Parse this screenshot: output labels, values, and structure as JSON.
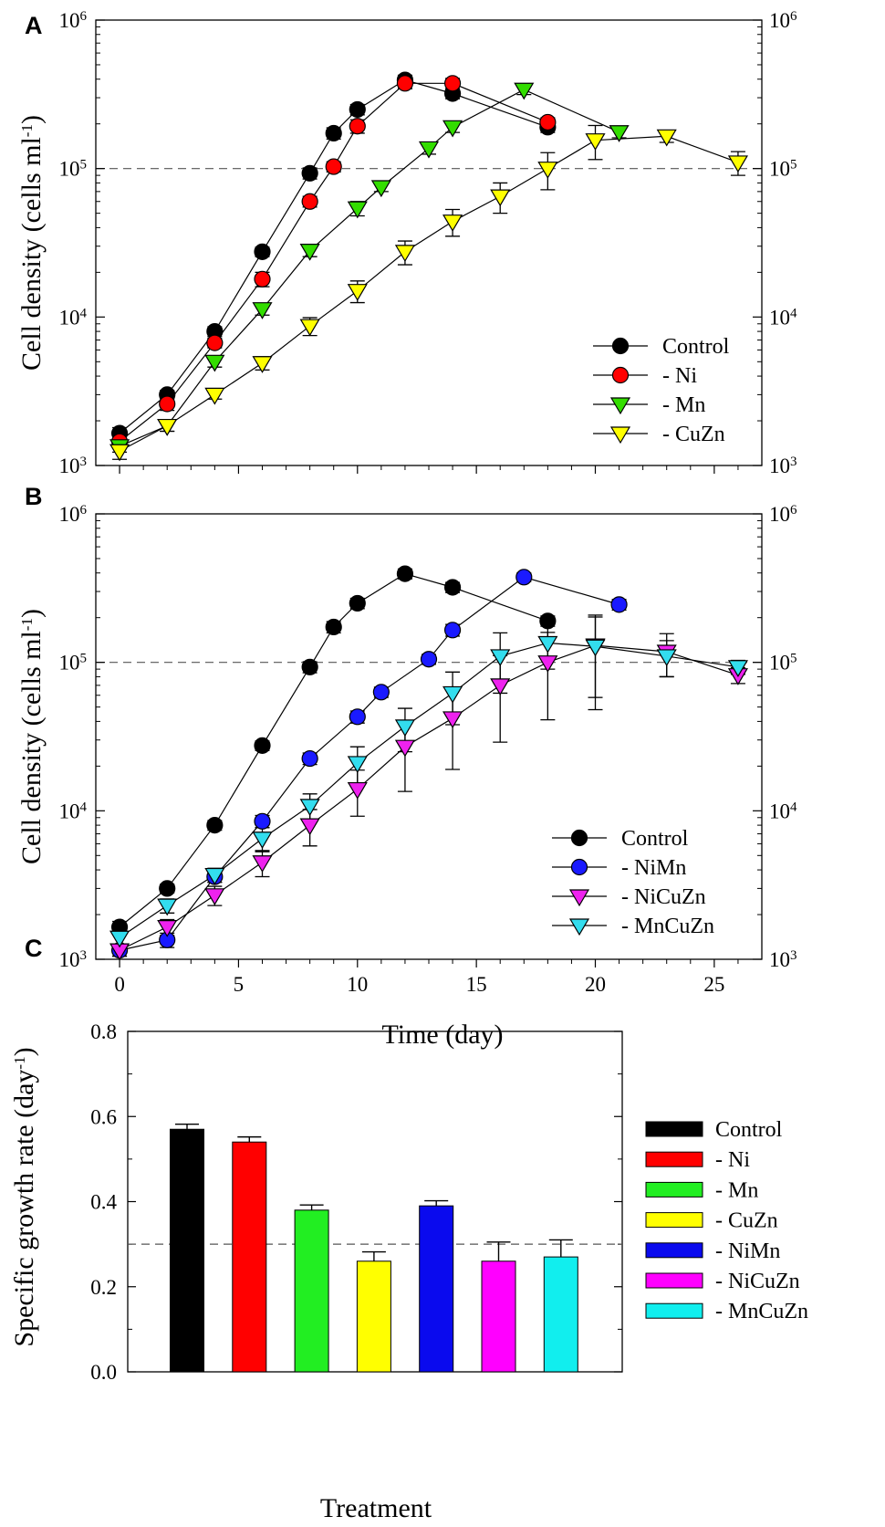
{
  "figure": {
    "panel_letters": [
      "A",
      "B",
      "C"
    ]
  },
  "chart_data": [
    {
      "panel": "A",
      "type": "line",
      "yscale": "log",
      "xlim": [
        -1,
        27
      ],
      "ylim": [
        1000,
        1000000
      ],
      "ylabel": "Cell density (cells ml",
      "ylabel_sup": "-1",
      "ylabel_close": ")",
      "yticks": [
        {
          "base": "10",
          "exp": "3",
          "value": 1000
        },
        {
          "base": "10",
          "exp": "4",
          "value": 10000
        },
        {
          "base": "10",
          "exp": "5",
          "value": 100000
        },
        {
          "base": "10",
          "exp": "6",
          "value": 1000000
        }
      ],
      "xticks": [
        0,
        5,
        10,
        15,
        20,
        25
      ],
      "show_x_tick_labels": false,
      "reference_line": 100000,
      "legend_position": "bottom-right",
      "series": [
        {
          "name": "Control",
          "marker": "circle",
          "color": "#000000",
          "points": [
            [
              0,
              1650,
              150
            ],
            [
              2,
              3000,
              200
            ],
            [
              4,
              8000,
              600
            ],
            [
              6,
              27500,
              2000
            ],
            [
              8,
              93000,
              8000
            ],
            [
              9,
              173000,
              15000
            ],
            [
              10,
              250000,
              20000
            ],
            [
              12,
              395000,
              30000
            ],
            [
              14,
              320000,
              25000
            ],
            [
              18,
              190000,
              15000
            ]
          ]
        },
        {
          "name": "- Ni",
          "marker": "circle",
          "color": "#ff0000",
          "points": [
            [
              0,
              1450,
              120
            ],
            [
              2,
              2600,
              250
            ],
            [
              4,
              6700,
              500
            ],
            [
              6,
              18000,
              2000
            ],
            [
              8,
              60000,
              5000
            ],
            [
              9,
              103000,
              8000
            ],
            [
              10,
              193000,
              20000
            ],
            [
              12,
              375000,
              30000
            ],
            [
              14,
              375000,
              30000
            ],
            [
              18,
              205000,
              15000
            ]
          ]
        },
        {
          "name": "- Mn",
          "marker": "triangle-down",
          "color": "#33dd00",
          "points": [
            [
              0,
              1350,
              120
            ],
            [
              2,
              1850,
              150
            ],
            [
              4,
              5000,
              400
            ],
            [
              6,
              11300,
              1000
            ],
            [
              8,
              28000,
              2500
            ],
            [
              10,
              54000,
              6000
            ],
            [
              11,
              75000,
              5000
            ],
            [
              13,
              137000,
              12000
            ],
            [
              14,
              190000,
              15000
            ],
            [
              17,
              340000,
              25000
            ],
            [
              21,
              176000,
              15000
            ]
          ]
        },
        {
          "name": "- CuZn",
          "marker": "triangle-down",
          "color": "#ffff00",
          "points": [
            [
              0,
              1250,
              150
            ],
            [
              2,
              1850,
              150
            ],
            [
              4,
              3000,
              200
            ],
            [
              6,
              4900,
              500
            ],
            [
              8,
              8700,
              1200
            ],
            [
              10,
              15000,
              2500
            ],
            [
              12,
              27500,
              5000
            ],
            [
              14,
              44000,
              9000
            ],
            [
              16,
              65000,
              15000
            ],
            [
              18,
              100000,
              28000
            ],
            [
              20,
              155000,
              40000
            ],
            [
              23,
              165000,
              15000
            ],
            [
              26,
              110000,
              20000
            ]
          ]
        }
      ]
    },
    {
      "panel": "B",
      "type": "line",
      "yscale": "log",
      "xlim": [
        -1,
        27
      ],
      "ylim": [
        1000,
        1000000
      ],
      "xlabel": "Time (day)",
      "ylabel": "Cell density (cells ml",
      "ylabel_sup": "-1",
      "ylabel_close": ")",
      "yticks": [
        {
          "base": "10",
          "exp": "3",
          "value": 1000
        },
        {
          "base": "10",
          "exp": "4",
          "value": 10000
        },
        {
          "base": "10",
          "exp": "5",
          "value": 100000
        },
        {
          "base": "10",
          "exp": "6",
          "value": 1000000
        }
      ],
      "xticks": [
        0,
        5,
        10,
        15,
        20,
        25
      ],
      "xtick_labels": [
        "0",
        "5",
        "10",
        "15",
        "20",
        "25"
      ],
      "reference_line": 100000,
      "legend_position": "bottom-right",
      "series": [
        {
          "name": "Control",
          "marker": "circle",
          "color": "#000000",
          "points": [
            [
              0,
              1650,
              150
            ],
            [
              2,
              3000,
              200
            ],
            [
              4,
              8000,
              600
            ],
            [
              6,
              27500,
              2000
            ],
            [
              8,
              93000,
              8000
            ],
            [
              9,
              173000,
              15000
            ],
            [
              10,
              250000,
              20000
            ],
            [
              12,
              395000,
              30000
            ],
            [
              14,
              320000,
              25000
            ],
            [
              18,
              190000,
              15000
            ]
          ]
        },
        {
          "name": "- NiMn",
          "marker": "circle",
          "color": "#1a1aff",
          "points": [
            [
              0,
              1150,
              100
            ],
            [
              2,
              1350,
              150
            ],
            [
              4,
              3600,
              300
            ],
            [
              6,
              8500,
              800
            ],
            [
              8,
              22500,
              2000
            ],
            [
              10,
              43000,
              4000
            ],
            [
              11,
              63000,
              5000
            ],
            [
              13,
              105000,
              8000
            ],
            [
              14,
              165000,
              15000
            ],
            [
              17,
              375000,
              25000
            ],
            [
              21,
              245000,
              20000
            ]
          ]
        },
        {
          "name": "- NiCuZn",
          "marker": "triangle-down",
          "color": "#ee22ee",
          "points": [
            [
              0,
              1150,
              100
            ],
            [
              2,
              1650,
              200
            ],
            [
              4,
              2700,
              400
            ],
            [
              6,
              4500,
              900
            ],
            [
              8,
              8000,
              2200
            ],
            [
              10,
              14000,
              4800
            ],
            [
              12,
              27000,
              13500
            ],
            [
              14,
              42000,
              23000
            ],
            [
              16,
              70000,
              41000
            ],
            [
              18,
              100000,
              59000
            ],
            [
              20,
              130000,
              72000
            ],
            [
              23,
              118000,
              38000
            ],
            [
              26,
              82000,
              10000
            ]
          ]
        },
        {
          "name": "- MnCuZn",
          "marker": "triangle-down",
          "color": "#33ddee",
          "points": [
            [
              0,
              1400,
              150
            ],
            [
              2,
              2300,
              250
            ],
            [
              4,
              3700,
              400
            ],
            [
              6,
              6500,
              1200
            ],
            [
              8,
              10800,
              2200
            ],
            [
              10,
              21000,
              6000
            ],
            [
              12,
              37000,
              12000
            ],
            [
              14,
              62000,
              24000
            ],
            [
              16,
              110000,
              48000
            ],
            [
              18,
              135000,
              45000
            ],
            [
              20,
              128000,
              80000
            ],
            [
              23,
              110000,
              30000
            ],
            [
              26,
              93000,
              10000
            ]
          ]
        }
      ]
    },
    {
      "panel": "C",
      "type": "bar",
      "categories": [
        "Control",
        "- Ni",
        "- Mn",
        "- CuZn",
        "- NiMn",
        "- NiCuZn",
        "- MnCuZn"
      ],
      "values": [
        0.57,
        0.54,
        0.38,
        0.26,
        0.39,
        0.26,
        0.27
      ],
      "errors": [
        0.012,
        0.012,
        0.012,
        0.022,
        0.012,
        0.045,
        0.04
      ],
      "colors": [
        "#000000",
        "#ff0000",
        "#22ee22",
        "#ffff00",
        "#0a0aee",
        "#ff00ff",
        "#11eeee"
      ],
      "ylim": [
        0,
        0.8
      ],
      "yticks": [
        "0.0",
        "0.2",
        "0.4",
        "0.6",
        "0.8"
      ],
      "ylabel": "Specific growth rate (day",
      "ylabel_sup": "-1",
      "ylabel_close": ")",
      "xlabel": "Treatment",
      "reference_line": 0.3,
      "legend_position": "right"
    }
  ]
}
